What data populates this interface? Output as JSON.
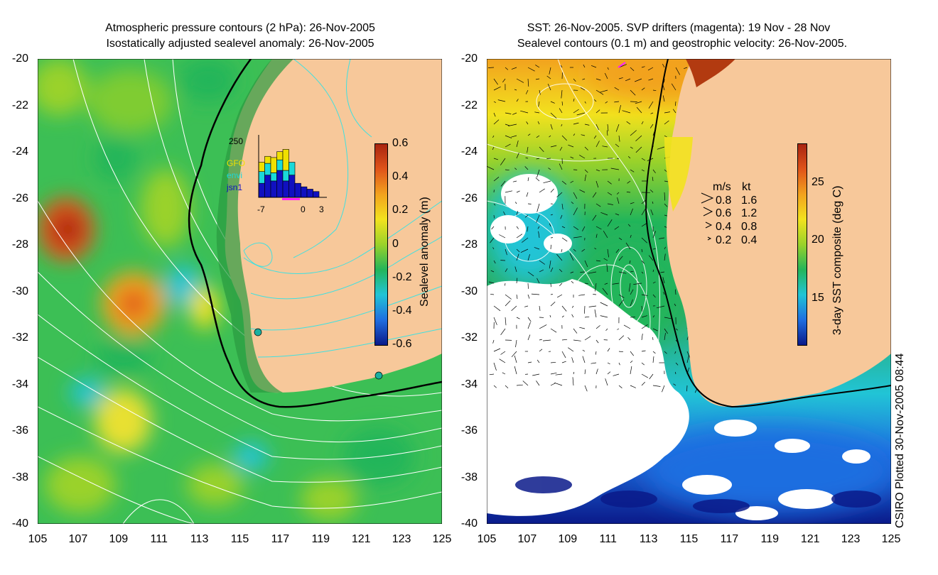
{
  "left_panel": {
    "title_line1": "Atmospheric pressure contours (2 hPa): 26-Nov-2005",
    "title_line2": "Isostatically adjusted sealevel anomaly: 26-Nov-2005",
    "colorbar": {
      "label": "Sealevel anomaly (m)",
      "ticks": [
        "0.6",
        "0.4",
        "0.2",
        "0",
        "-0.2",
        "-0.4",
        "-0.6"
      ],
      "colors": [
        "#0a1a8a",
        "#1f6ee0",
        "#21c4d6",
        "#23b55a",
        "#9ad22a",
        "#f2e21e",
        "#f2a21e",
        "#e0541a",
        "#a82410"
      ]
    },
    "histogram": {
      "ymax_label": "250",
      "legend": [
        "GFO",
        "envi",
        "jsn1"
      ],
      "legend_colors": [
        "#f0e000",
        "#1ad9d9",
        "#1010c0"
      ],
      "x_tick_labels": [
        "-7",
        "0",
        "3"
      ],
      "bars_jsn1": [
        60,
        95,
        70,
        115,
        70,
        95,
        60,
        45,
        35,
        25
      ],
      "bars_envi": [
        50,
        50,
        35,
        45,
        45,
        55,
        0,
        0,
        0,
        0
      ],
      "bars_gfo": [
        40,
        30,
        65,
        35,
        90,
        0,
        0,
        0,
        0,
        0
      ]
    }
  },
  "right_panel": {
    "title_line1": "SST: 26-Nov-2005. SVP drifters (magenta): 19 Nov - 28 Nov",
    "title_line2": "Sealevel contours (0.1 m) and geostrophic velocity: 26-Nov-2005.",
    "colorbar": {
      "label": "3-day SST composite (deg C)",
      "ticks": [
        "25",
        "20",
        "15"
      ],
      "colors": [
        "#0a1a8a",
        "#1f6ee0",
        "#21c4d6",
        "#23b55a",
        "#9ad22a",
        "#f2e21e",
        "#f2a21e",
        "#e0541a",
        "#a82410"
      ]
    },
    "velocity_legend": {
      "header_ms": "m/s",
      "header_kt": "kt",
      "rows": [
        {
          "ms": "0.8",
          "kt": "1.6"
        },
        {
          "ms": "0.6",
          "kt": "1.2"
        },
        {
          "ms": "0.4",
          "kt": "0.8"
        },
        {
          "ms": "0.2",
          "kt": "0.4"
        }
      ]
    }
  },
  "axes": {
    "lat_ticks": [
      "-20",
      "-22",
      "-24",
      "-26",
      "-28",
      "-30",
      "-32",
      "-34",
      "-36",
      "-38",
      "-40"
    ],
    "lon_ticks": [
      "105",
      "107",
      "109",
      "111",
      "113",
      "115",
      "117",
      "119",
      "121",
      "123",
      "125"
    ]
  },
  "footer": "CSIRO Plotted 30-Nov-2005 08:44",
  "colors": {
    "land": "#f7c89a",
    "ocean_green": "#2fb85a",
    "contour_white": "#ffffff",
    "contour_cyan": "#40e0e0"
  }
}
